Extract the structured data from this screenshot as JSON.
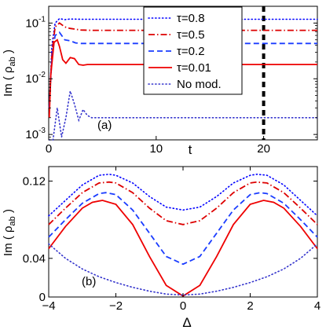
{
  "chart_data": [
    {
      "panel_label": "(a)",
      "type": "line",
      "xlabel": "t",
      "ylabel": "Im ( ρ",
      "ylabel_sub": "ab",
      "ylabel_close": " )",
      "xlim": [
        0,
        25
      ],
      "ylim": [
        0.0008,
        0.2
      ],
      "yscale": "log",
      "xticks": [
        0,
        10,
        20
      ],
      "xtick_labels": [
        "0",
        "10",
        "20"
      ],
      "yticks": [
        0.001,
        0.01,
        0.1
      ],
      "ytick_labels": [
        {
          "base": "10",
          "exp": "-3"
        },
        {
          "base": "10",
          "exp": "-2"
        },
        {
          "base": "10",
          "exp": "-1"
        }
      ],
      "vline": {
        "x": 20,
        "color": "#000000",
        "style": "dashed-thick"
      },
      "legend": {
        "placement": "top-center",
        "entries": [
          {
            "label": "τ=0.8",
            "color": "#0000ff",
            "style": "dotted"
          },
          {
            "label": "τ=0.5",
            "color": "#dd0000",
            "style": "dashdot"
          },
          {
            "label": "τ=0.2",
            "color": "#1a3cff",
            "style": "dashed"
          },
          {
            "label": "τ=0.01",
            "color": "#ee0000",
            "style": "solid"
          },
          {
            "label": "No mod.",
            "color": "#3333cc",
            "style": "dotted"
          }
        ]
      },
      "series": [
        {
          "name": "τ=0.8",
          "color": "#0000ff",
          "style": "dotted",
          "x": [
            0.05,
            0.3,
            0.6,
            1.0,
            1.5,
            2.0,
            3.0,
            25
          ],
          "y": [
            0.003,
            0.04,
            0.1,
            0.12,
            0.115,
            0.118,
            0.117,
            0.117
          ]
        },
        {
          "name": "τ=0.5",
          "color": "#dd0000",
          "style": "dashdot",
          "x": [
            0.05,
            0.3,
            0.6,
            1.0,
            1.5,
            2.0,
            3.0,
            4.0,
            25
          ],
          "y": [
            0.003,
            0.03,
            0.085,
            0.1,
            0.085,
            0.08,
            0.075,
            0.074,
            0.074
          ]
        },
        {
          "name": "τ=0.2",
          "color": "#1a3cff",
          "style": "dashed",
          "x": [
            0.05,
            0.3,
            0.6,
            1.0,
            1.5,
            2.0,
            2.5,
            3.0,
            4.0,
            25
          ],
          "y": [
            0.003,
            0.025,
            0.06,
            0.068,
            0.05,
            0.048,
            0.044,
            0.043,
            0.043,
            0.043
          ]
        },
        {
          "name": "τ=0.01",
          "color": "#ee0000",
          "style": "solid",
          "x": [
            0.05,
            0.2,
            0.5,
            0.8,
            1.0,
            1.3,
            1.6,
            2.0,
            2.4,
            2.8,
            3.2,
            3.6,
            4.5,
            25
          ],
          "y": [
            0.002,
            0.012,
            0.045,
            0.05,
            0.038,
            0.022,
            0.019,
            0.024,
            0.023,
            0.018,
            0.0175,
            0.018,
            0.018,
            0.018
          ]
        },
        {
          "name": "No mod.",
          "color": "#3333cc",
          "style": "dotted",
          "x": [
            0.05,
            0.4,
            0.8,
            1.2,
            1.6,
            2.0,
            2.4,
            2.8,
            3.2,
            3.6,
            4.0,
            5.0,
            25
          ],
          "y": [
            0.0008,
            0.0008,
            0.003,
            0.0009,
            0.002,
            0.006,
            0.0035,
            0.0018,
            0.0028,
            0.0022,
            0.002,
            0.002,
            0.002
          ]
        }
      ]
    },
    {
      "panel_label": "(b)",
      "type": "line",
      "xlabel": "Δ",
      "ylabel": "Im ( ρ",
      "ylabel_sub": "ab",
      "ylabel_close": " )",
      "xlim": [
        -4,
        4
      ],
      "ylim": [
        0,
        0.135
      ],
      "xticks": [
        -4,
        -2,
        0,
        2,
        4
      ],
      "xtick_labels": [
        "−4",
        "−2",
        "0",
        "2",
        "4"
      ],
      "yticks": [
        0,
        0.04,
        0.12
      ],
      "ytick_labels": [
        "0",
        "0.04",
        "0.12"
      ],
      "series": [
        {
          "name": "τ=0.8",
          "color": "#0000ff",
          "style": "dotted",
          "x": [
            -4,
            -3.5,
            -3,
            -2.5,
            -2.2,
            -2,
            -1.5,
            -1,
            -0.5,
            0,
            0.5,
            1,
            1.5,
            2,
            2.2,
            2.5,
            3,
            3.5,
            4
          ],
          "y": [
            0.084,
            0.1,
            0.116,
            0.126,
            0.127,
            0.126,
            0.118,
            0.104,
            0.093,
            0.09,
            0.093,
            0.104,
            0.118,
            0.126,
            0.127,
            0.126,
            0.116,
            0.1,
            0.084
          ]
        },
        {
          "name": "τ=0.5",
          "color": "#dd0000",
          "style": "dashdot",
          "x": [
            -4,
            -3.5,
            -3,
            -2.5,
            -2.2,
            -2,
            -1.5,
            -1,
            -0.5,
            0,
            0.5,
            1,
            1.5,
            2,
            2.2,
            2.5,
            3,
            3.5,
            4
          ],
          "y": [
            0.075,
            0.092,
            0.108,
            0.118,
            0.119,
            0.118,
            0.108,
            0.092,
            0.079,
            0.075,
            0.079,
            0.092,
            0.108,
            0.118,
            0.119,
            0.118,
            0.108,
            0.092,
            0.075
          ]
        },
        {
          "name": "τ=0.2",
          "color": "#1a3cff",
          "style": "dashed",
          "x": [
            -4,
            -3.5,
            -3,
            -2.5,
            -2.3,
            -2,
            -1.5,
            -1,
            -0.5,
            0,
            0.5,
            1,
            1.5,
            2,
            2.3,
            2.5,
            3,
            3.5,
            4
          ],
          "y": [
            0.062,
            0.08,
            0.097,
            0.107,
            0.108,
            0.106,
            0.09,
            0.066,
            0.042,
            0.034,
            0.042,
            0.066,
            0.09,
            0.106,
            0.108,
            0.107,
            0.097,
            0.08,
            0.062
          ]
        },
        {
          "name": "τ=0.01",
          "color": "#ee0000",
          "style": "solid",
          "x": [
            -4,
            -3.5,
            -3,
            -2.7,
            -2.4,
            -2,
            -1.5,
            -1,
            -0.5,
            0,
            0.5,
            1,
            1.5,
            2,
            2.4,
            2.7,
            3,
            3.5,
            4
          ],
          "y": [
            0.05,
            0.073,
            0.092,
            0.098,
            0.1,
            0.096,
            0.075,
            0.042,
            0.012,
            0.001,
            0.012,
            0.042,
            0.075,
            0.096,
            0.1,
            0.098,
            0.092,
            0.073,
            0.05
          ]
        },
        {
          "name": "No mod.",
          "color": "#3333cc",
          "style": "dotted",
          "x": [
            -4,
            -3.5,
            -3,
            -2.5,
            -2,
            -1.5,
            -1,
            -0.5,
            0,
            0.5,
            1,
            1.5,
            2,
            2.5,
            3,
            3.5,
            4
          ],
          "y": [
            0.055,
            0.04,
            0.029,
            0.021,
            0.015,
            0.01,
            0.006,
            0.003,
            0.002,
            0.003,
            0.006,
            0.01,
            0.015,
            0.021,
            0.029,
            0.04,
            0.055
          ]
        }
      ]
    }
  ]
}
